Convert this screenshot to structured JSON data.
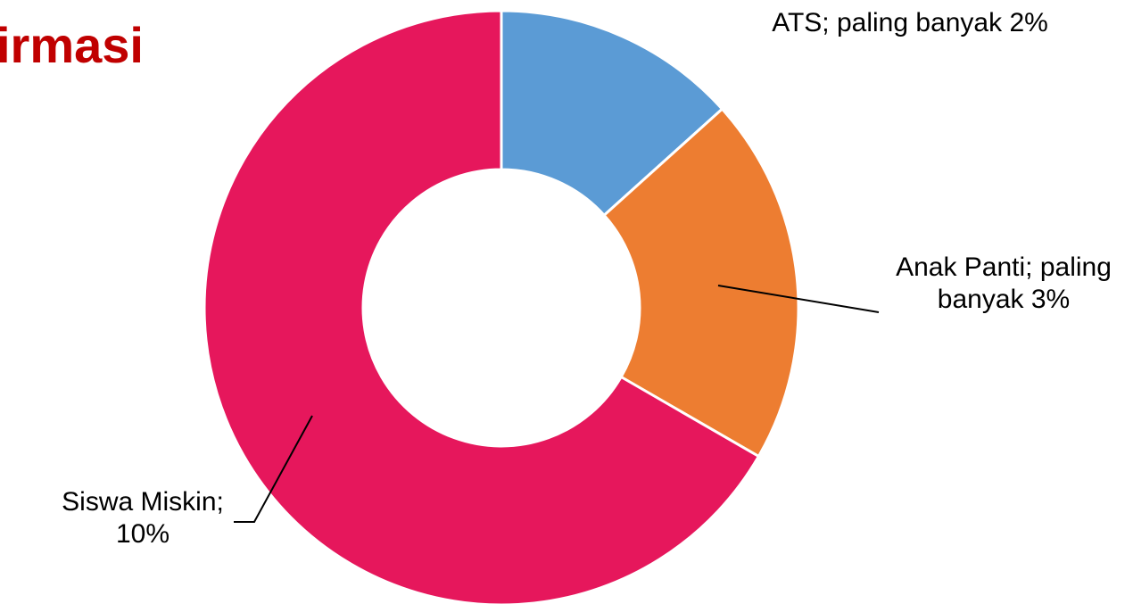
{
  "chart_data": {
    "type": "donut",
    "title": "irmasi",
    "values": [
      2,
      3,
      10
    ],
    "value_labels": [
      "ATS; paling banyak 2%",
      "Anak Panti; paling banyak 3%",
      "Siswa Miskin; 10%"
    ],
    "colors": [
      "#5b9bd5",
      "#ed7d31",
      "#e6175c"
    ]
  }
}
